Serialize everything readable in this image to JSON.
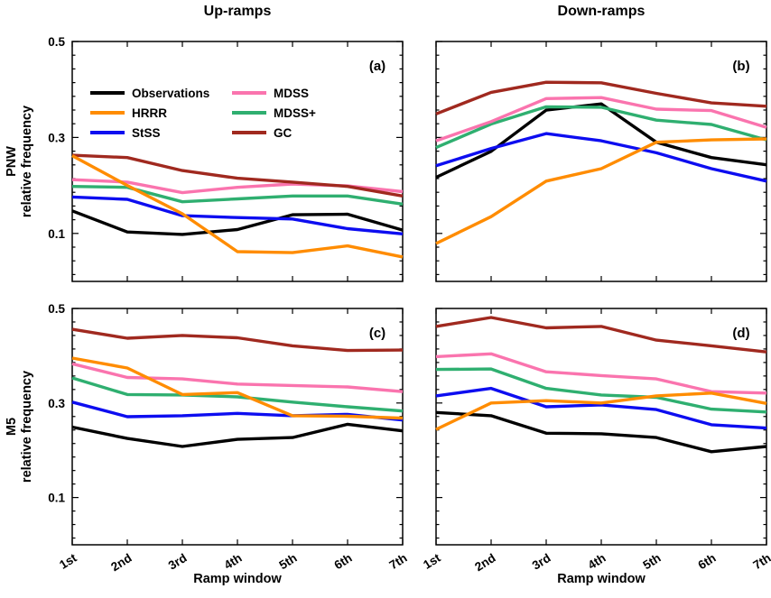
{
  "figure": {
    "column_titles": [
      "Up-ramps",
      "Down-ramps"
    ],
    "row_labels": [
      {
        "group": "PNW",
        "axis": "relative frequency"
      },
      {
        "group": "M5",
        "axis": "relative frequency"
      }
    ],
    "x_axis_title": "Ramp window",
    "legend": [
      {
        "label": "Observations",
        "color": "#000000"
      },
      {
        "label": "HRRR",
        "color": "#FF8C00"
      },
      {
        "label": "StSS",
        "color": "#0D0DF0"
      },
      {
        "label": "MDSS",
        "color": "#FA74AE"
      },
      {
        "label": "MDSS+",
        "color": "#2FAF70"
      },
      {
        "label": "GC",
        "color": "#A0291F"
      }
    ],
    "axis_color": "#000000"
  },
  "chart_data": [
    {
      "type": "line",
      "label": "(a)",
      "column": "Up-ramps",
      "row": "PNW",
      "ylabel": "relative frequency",
      "categories": [
        "1st",
        "2nd",
        "3rd",
        "4th",
        "5th",
        "6th",
        "7th"
      ],
      "ylim": [
        0,
        0.5
      ],
      "yticks": [
        0.1,
        0.3,
        0.5
      ],
      "show_y_tick_labels": true,
      "show_x_tick_labels": false,
      "show_legend": true,
      "series": [
        {
          "name": "Observations",
          "values": [
            0.147,
            0.103,
            0.098,
            0.108,
            0.139,
            0.14,
            0.107
          ]
        },
        {
          "name": "StSS",
          "values": [
            0.176,
            0.171,
            0.137,
            0.133,
            0.13,
            0.11,
            0.099
          ]
        },
        {
          "name": "MDSS+",
          "values": [
            0.198,
            0.196,
            0.166,
            0.172,
            0.178,
            0.178,
            0.161
          ]
        },
        {
          "name": "MDSS",
          "values": [
            0.212,
            0.207,
            0.185,
            0.196,
            0.203,
            0.199,
            0.187
          ]
        },
        {
          "name": "GC",
          "values": [
            0.263,
            0.258,
            0.231,
            0.215,
            0.207,
            0.198,
            0.178
          ]
        },
        {
          "name": "HRRR",
          "values": [
            0.262,
            0.2,
            0.141,
            0.062,
            0.06,
            0.074,
            0.051
          ]
        }
      ]
    },
    {
      "type": "line",
      "label": "(b)",
      "column": "Down-ramps",
      "row": "PNW",
      "ylabel": "relative frequency",
      "categories": [
        "1st",
        "2nd",
        "3rd",
        "4th",
        "5th",
        "6th",
        "7th"
      ],
      "ylim": [
        0,
        0.5
      ],
      "yticks": [
        0.1,
        0.3,
        0.5
      ],
      "show_y_tick_labels": false,
      "show_x_tick_labels": false,
      "show_legend": false,
      "series": [
        {
          "name": "Observations",
          "values": [
            0.217,
            0.271,
            0.357,
            0.37,
            0.29,
            0.258,
            0.243
          ]
        },
        {
          "name": "StSS",
          "values": [
            0.241,
            0.277,
            0.308,
            0.293,
            0.268,
            0.235,
            0.209
          ]
        },
        {
          "name": "MDSS+",
          "values": [
            0.279,
            0.328,
            0.364,
            0.363,
            0.336,
            0.327,
            0.295
          ]
        },
        {
          "name": "MDSS",
          "values": [
            0.293,
            0.333,
            0.381,
            0.383,
            0.359,
            0.356,
            0.321
          ]
        },
        {
          "name": "GC",
          "values": [
            0.349,
            0.394,
            0.415,
            0.414,
            0.392,
            0.372,
            0.365
          ]
        },
        {
          "name": "HRRR",
          "values": [
            0.079,
            0.135,
            0.209,
            0.235,
            0.29,
            0.295,
            0.297
          ]
        }
      ]
    },
    {
      "type": "line",
      "label": "(c)",
      "column": "Up-ramps",
      "row": "M5",
      "ylabel": "relative frequency",
      "categories": [
        "1st",
        "2nd",
        "3rd",
        "4th",
        "5th",
        "6th",
        "7th"
      ],
      "ylim": [
        0,
        0.5
      ],
      "yticks": [
        0.1,
        0.3,
        0.5
      ],
      "show_y_tick_labels": true,
      "show_x_tick_labels": true,
      "show_legend": false,
      "series": [
        {
          "name": "Observations",
          "values": [
            0.249,
            0.225,
            0.208,
            0.223,
            0.227,
            0.255,
            0.241
          ]
        },
        {
          "name": "StSS",
          "values": [
            0.302,
            0.271,
            0.273,
            0.278,
            0.273,
            0.276,
            0.264
          ]
        },
        {
          "name": "MDSS+",
          "values": [
            0.353,
            0.318,
            0.317,
            0.313,
            0.302,
            0.292,
            0.283
          ]
        },
        {
          "name": "MDSS",
          "values": [
            0.383,
            0.354,
            0.351,
            0.34,
            0.337,
            0.334,
            0.324
          ]
        },
        {
          "name": "GC",
          "values": [
            0.456,
            0.437,
            0.443,
            0.438,
            0.421,
            0.411,
            0.412
          ]
        },
        {
          "name": "HRRR",
          "values": [
            0.395,
            0.374,
            0.318,
            0.322,
            0.273,
            0.272,
            0.268
          ]
        }
      ]
    },
    {
      "type": "line",
      "label": "(d)",
      "column": "Down-ramps",
      "row": "M5",
      "ylabel": "relative frequency",
      "categories": [
        "1st",
        "2nd",
        "3rd",
        "4th",
        "5th",
        "6th",
        "7th"
      ],
      "ylim": [
        0,
        0.5
      ],
      "yticks": [
        0.1,
        0.3,
        0.5
      ],
      "show_y_tick_labels": false,
      "show_x_tick_labels": true,
      "show_legend": false,
      "series": [
        {
          "name": "Observations",
          "values": [
            0.28,
            0.273,
            0.236,
            0.235,
            0.227,
            0.197,
            0.208
          ]
        },
        {
          "name": "StSS",
          "values": [
            0.315,
            0.331,
            0.292,
            0.296,
            0.286,
            0.254,
            0.247
          ]
        },
        {
          "name": "MDSS+",
          "values": [
            0.371,
            0.372,
            0.331,
            0.317,
            0.312,
            0.287,
            0.281
          ]
        },
        {
          "name": "MDSS",
          "values": [
            0.398,
            0.404,
            0.366,
            0.358,
            0.351,
            0.324,
            0.321
          ]
        },
        {
          "name": "GC",
          "values": [
            0.462,
            0.481,
            0.459,
            0.462,
            0.433,
            0.421,
            0.408
          ]
        },
        {
          "name": "HRRR",
          "values": [
            0.244,
            0.3,
            0.305,
            0.3,
            0.315,
            0.321,
            0.299
          ]
        }
      ]
    }
  ]
}
